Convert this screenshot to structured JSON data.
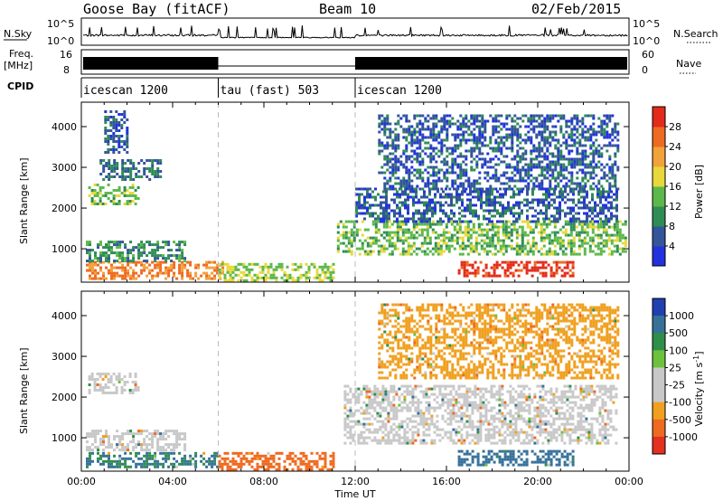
{
  "header": {
    "station": "Goose Bay (fitACF)",
    "beam": "Beam 10",
    "date": "02/Feb/2015"
  },
  "strip_labels": {
    "nsky": "N.Sky",
    "nsky_hi": "10^5",
    "nsky_lo": "10^0",
    "nsearch": "N.Search",
    "nsearch_hi": "10^5",
    "nsearch_lo": "10^0",
    "freq_line1": "Freq.",
    "freq_line2": "[MHz]",
    "freq_hi": "16",
    "freq_lo": "8",
    "nave": "Nave",
    "nave_hi": "60",
    "nave_lo": "0",
    "cpid": "CPID"
  },
  "cpid_segments": [
    {
      "label": "icescan 1200",
      "start_hour": 0,
      "end_hour": 6
    },
    {
      "label": "tau (fast) 503",
      "start_hour": 6,
      "end_hour": 12
    },
    {
      "label": "icescan 1200",
      "start_hour": 12,
      "end_hour": 24
    }
  ],
  "colors": {
    "power": [
      "#2233dd",
      "#33559a",
      "#2f8c55",
      "#5cb84a",
      "#e8d83a",
      "#f2a23a",
      "#ee6a22",
      "#e22b1a"
    ],
    "velocity": [
      "#2040b0",
      "#36719a",
      "#2e8f4a",
      "#6cc23c",
      "#c8c8c8",
      "#c8c8c8",
      "#f0a020",
      "#ee6a20",
      "#e33020"
    ],
    "ground_scatter": "#c8c8c8"
  },
  "chart_data": [
    {
      "type": "heatmap",
      "panel": "power",
      "xlabel": "Time UT",
      "ylabel": "Slant Range [km]",
      "xlim": [
        0,
        24
      ],
      "ylim": [
        180,
        4600
      ],
      "x_ticks": [
        "00:00",
        "04:00",
        "08:00",
        "12:00",
        "16:00",
        "20:00",
        "00:00"
      ],
      "y_ticks": [
        1000,
        2000,
        3000,
        4000
      ],
      "colorbar": {
        "label": "Power [dB]",
        "ticks": [
          4,
          8,
          12,
          16,
          20,
          24,
          28
        ],
        "range": [
          0,
          32
        ]
      },
      "regions": [
        {
          "t0": 0.2,
          "t1": 6.2,
          "r0": 300,
          "r1": 700,
          "value": 24
        },
        {
          "t0": 0.2,
          "t1": 4.5,
          "r0": 700,
          "r1": 1200,
          "value": 10
        },
        {
          "t0": 0.3,
          "t1": 2.5,
          "r0": 2100,
          "r1": 2600,
          "value": 14
        },
        {
          "t0": 0.8,
          "t1": 3.5,
          "r0": 2700,
          "r1": 3200,
          "value": 8
        },
        {
          "t0": 1.0,
          "t1": 2.0,
          "r0": 3400,
          "r1": 4400,
          "value": 6
        },
        {
          "t0": 6.0,
          "t1": 11.0,
          "r0": 250,
          "r1": 650,
          "value": 16
        },
        {
          "t0": 11.2,
          "t1": 23.8,
          "r0": 900,
          "r1": 1700,
          "value": 14
        },
        {
          "t0": 12.0,
          "t1": 23.5,
          "r0": 1700,
          "r1": 2500,
          "value": 6
        },
        {
          "t0": 16.5,
          "t1": 21.5,
          "r0": 350,
          "r1": 700,
          "value": 30
        },
        {
          "t0": 13.0,
          "t1": 23.5,
          "r0": 2500,
          "r1": 4300,
          "value": 6
        }
      ]
    },
    {
      "type": "heatmap",
      "panel": "velocity",
      "xlabel": "Time UT",
      "ylabel": "Slant Range [km]",
      "xlim": [
        0,
        24
      ],
      "ylim": [
        180,
        4600
      ],
      "x_ticks": [
        "00:00",
        "04:00",
        "08:00",
        "12:00",
        "16:00",
        "20:00",
        "00:00"
      ],
      "y_ticks": [
        1000,
        2000,
        3000,
        4000
      ],
      "colorbar": {
        "label": "Velocity [m s^-1]",
        "ticks": [
          "1000",
          "500",
          "100",
          "25",
          "-25",
          "-100",
          "-500",
          "-1000"
        ]
      },
      "regions": [
        {
          "t0": 0.2,
          "t1": 6.0,
          "r0": 300,
          "r1": 650,
          "value": 100
        },
        {
          "t0": 0.2,
          "t1": 4.5,
          "r0": 700,
          "r1": 1200,
          "value": 0
        },
        {
          "t0": 0.3,
          "t1": 2.5,
          "r0": 2100,
          "r1": 2600,
          "value": 0
        },
        {
          "t0": 6.0,
          "t1": 11.0,
          "r0": 250,
          "r1": 650,
          "value": -150
        },
        {
          "t0": 11.5,
          "t1": 23.5,
          "r0": 900,
          "r1": 2300,
          "value": 0
        },
        {
          "t0": 16.5,
          "t1": 21.5,
          "r0": 350,
          "r1": 700,
          "value": 120
        },
        {
          "t0": 13.0,
          "t1": 23.5,
          "r0": 2500,
          "r1": 4300,
          "value": -80
        }
      ]
    }
  ]
}
